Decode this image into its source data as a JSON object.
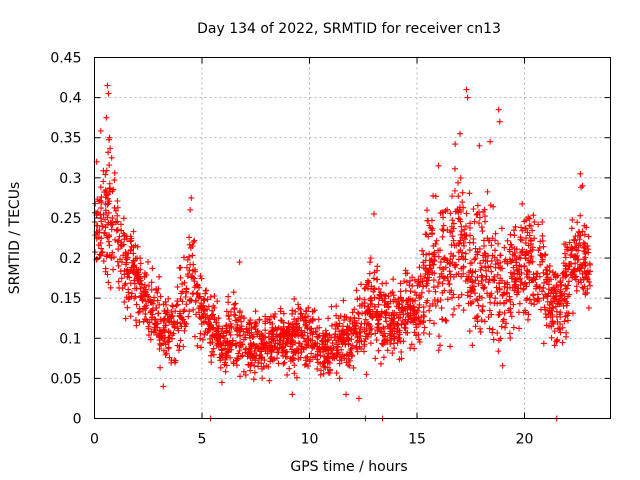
{
  "chart_data": {
    "type": "scatter",
    "title": "Day 134 of 2022, SRMTID for receiver cn13",
    "xlabel": "GPS time / hours",
    "ylabel": "SRMTID / TECUs",
    "xlim": [
      0,
      24
    ],
    "ylim": [
      0,
      0.45
    ],
    "x_ticks": [
      0,
      5,
      10,
      15,
      20
    ],
    "x_tick_labels": [
      "0",
      "5",
      "10",
      "15",
      "20"
    ],
    "y_ticks": [
      0,
      0.05,
      0.1,
      0.15,
      0.2,
      0.25,
      0.3,
      0.35,
      0.4,
      0.45
    ],
    "y_tick_labels": [
      "0",
      "0.05",
      "0.1",
      "0.15",
      "0.2",
      "0.25",
      "0.3",
      "0.35",
      "0.4",
      "0.45"
    ],
    "grid": true,
    "marker": "+",
    "color": "#ff0000",
    "series": [
      {
        "name": "SRMTID",
        "envelope": {
          "x": [
            0.0,
            0.5,
            1.0,
            1.5,
            2.0,
            2.5,
            3.0,
            3.5,
            4.0,
            4.5,
            5.0,
            5.5,
            6.0,
            6.5,
            7.0,
            7.5,
            8.0,
            8.5,
            9.0,
            9.5,
            10.0,
            10.5,
            11.0,
            11.5,
            12.0,
            12.5,
            13.0,
            13.5,
            14.0,
            14.5,
            15.0,
            15.5,
            16.0,
            16.5,
            17.0,
            17.5,
            18.0,
            18.5,
            19.0,
            19.5,
            20.0,
            20.5,
            21.0,
            21.5,
            22.0,
            22.5,
            23.0
          ],
          "center": [
            0.22,
            0.26,
            0.22,
            0.19,
            0.17,
            0.14,
            0.11,
            0.11,
            0.13,
            0.18,
            0.14,
            0.11,
            0.09,
            0.11,
            0.09,
            0.09,
            0.09,
            0.1,
            0.1,
            0.1,
            0.1,
            0.09,
            0.09,
            0.1,
            0.1,
            0.12,
            0.15,
            0.11,
            0.12,
            0.14,
            0.13,
            0.18,
            0.19,
            0.2,
            0.22,
            0.18,
            0.18,
            0.17,
            0.16,
            0.18,
            0.19,
            0.18,
            0.16,
            0.14,
            0.17,
            0.21,
            0.18
          ],
          "spread": [
            0.05,
            0.08,
            0.05,
            0.05,
            0.04,
            0.04,
            0.04,
            0.04,
            0.04,
            0.05,
            0.04,
            0.03,
            0.03,
            0.04,
            0.03,
            0.03,
            0.03,
            0.03,
            0.03,
            0.03,
            0.03,
            0.03,
            0.03,
            0.03,
            0.03,
            0.04,
            0.05,
            0.04,
            0.04,
            0.04,
            0.04,
            0.06,
            0.07,
            0.08,
            0.08,
            0.06,
            0.07,
            0.07,
            0.06,
            0.06,
            0.06,
            0.05,
            0.05,
            0.04,
            0.05,
            0.05,
            0.04
          ]
        },
        "points_per_hour": 110,
        "peaks": [
          {
            "x": 0.6,
            "y": 0.415
          },
          {
            "x": 0.65,
            "y": 0.405
          },
          {
            "x": 0.55,
            "y": 0.375
          },
          {
            "x": 0.7,
            "y": 0.35
          },
          {
            "x": 0.8,
            "y": 0.325
          },
          {
            "x": 0.1,
            "y": 0.32
          },
          {
            "x": 4.5,
            "y": 0.275
          },
          {
            "x": 4.45,
            "y": 0.26
          },
          {
            "x": 6.75,
            "y": 0.195
          },
          {
            "x": 13.0,
            "y": 0.255
          },
          {
            "x": 16.0,
            "y": 0.315
          },
          {
            "x": 17.3,
            "y": 0.41
          },
          {
            "x": 17.35,
            "y": 0.4
          },
          {
            "x": 17.0,
            "y": 0.355
          },
          {
            "x": 17.9,
            "y": 0.34
          },
          {
            "x": 18.4,
            "y": 0.345
          },
          {
            "x": 18.8,
            "y": 0.385
          },
          {
            "x": 18.85,
            "y": 0.37
          },
          {
            "x": 22.6,
            "y": 0.305
          },
          {
            "x": 22.7,
            "y": 0.29
          }
        ],
        "lows": [
          {
            "x": 3.2,
            "y": 0.04
          },
          {
            "x": 9.2,
            "y": 0.03
          },
          {
            "x": 11.7,
            "y": 0.03
          },
          {
            "x": 12.3,
            "y": 0.025
          },
          {
            "x": 12.65,
            "y": 0.055
          }
        ],
        "zero_points": [
          {
            "x": 5.4,
            "y": 0
          },
          {
            "x": 12.6,
            "y": 0
          },
          {
            "x": 13.4,
            "y": 0
          },
          {
            "x": 21.5,
            "y": 0
          }
        ]
      }
    ]
  }
}
